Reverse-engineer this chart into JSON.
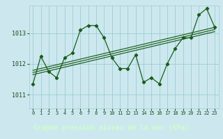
{
  "xlabel": "Graphe pression niveau de la mer (hPa)",
  "bg_plot": "#cce8ee",
  "bg_label": "#2d6e2d",
  "line_color": "#1a5c1a",
  "grid_color": "#9dccd4",
  "label_text_color": "#ccffcc",
  "tick_text_color": "#1a4a1a",
  "ylim": [
    1010.55,
    1013.9
  ],
  "xlim": [
    -0.5,
    23.5
  ],
  "yticks": [
    1011,
    1012,
    1013
  ],
  "xticks": [
    0,
    1,
    2,
    3,
    4,
    5,
    6,
    7,
    8,
    9,
    10,
    11,
    12,
    13,
    14,
    15,
    16,
    17,
    18,
    19,
    20,
    21,
    22,
    23
  ],
  "series1": [
    1011.35,
    1012.25,
    1011.75,
    1011.55,
    1012.2,
    1012.35,
    1013.1,
    1013.25,
    1013.25,
    1012.85,
    1012.2,
    1011.85,
    1011.85,
    1012.3,
    1011.4,
    1011.55,
    1011.35,
    1012.0,
    1012.5,
    1012.85,
    1012.85,
    1013.6,
    1013.8,
    1013.2
  ],
  "trend_lines": [
    {
      "x": [
        0,
        23
      ],
      "y": [
        1011.65,
        1013.05
      ]
    },
    {
      "x": [
        0,
        23
      ],
      "y": [
        1011.72,
        1013.12
      ]
    },
    {
      "x": [
        0,
        23
      ],
      "y": [
        1011.79,
        1013.19
      ]
    }
  ]
}
